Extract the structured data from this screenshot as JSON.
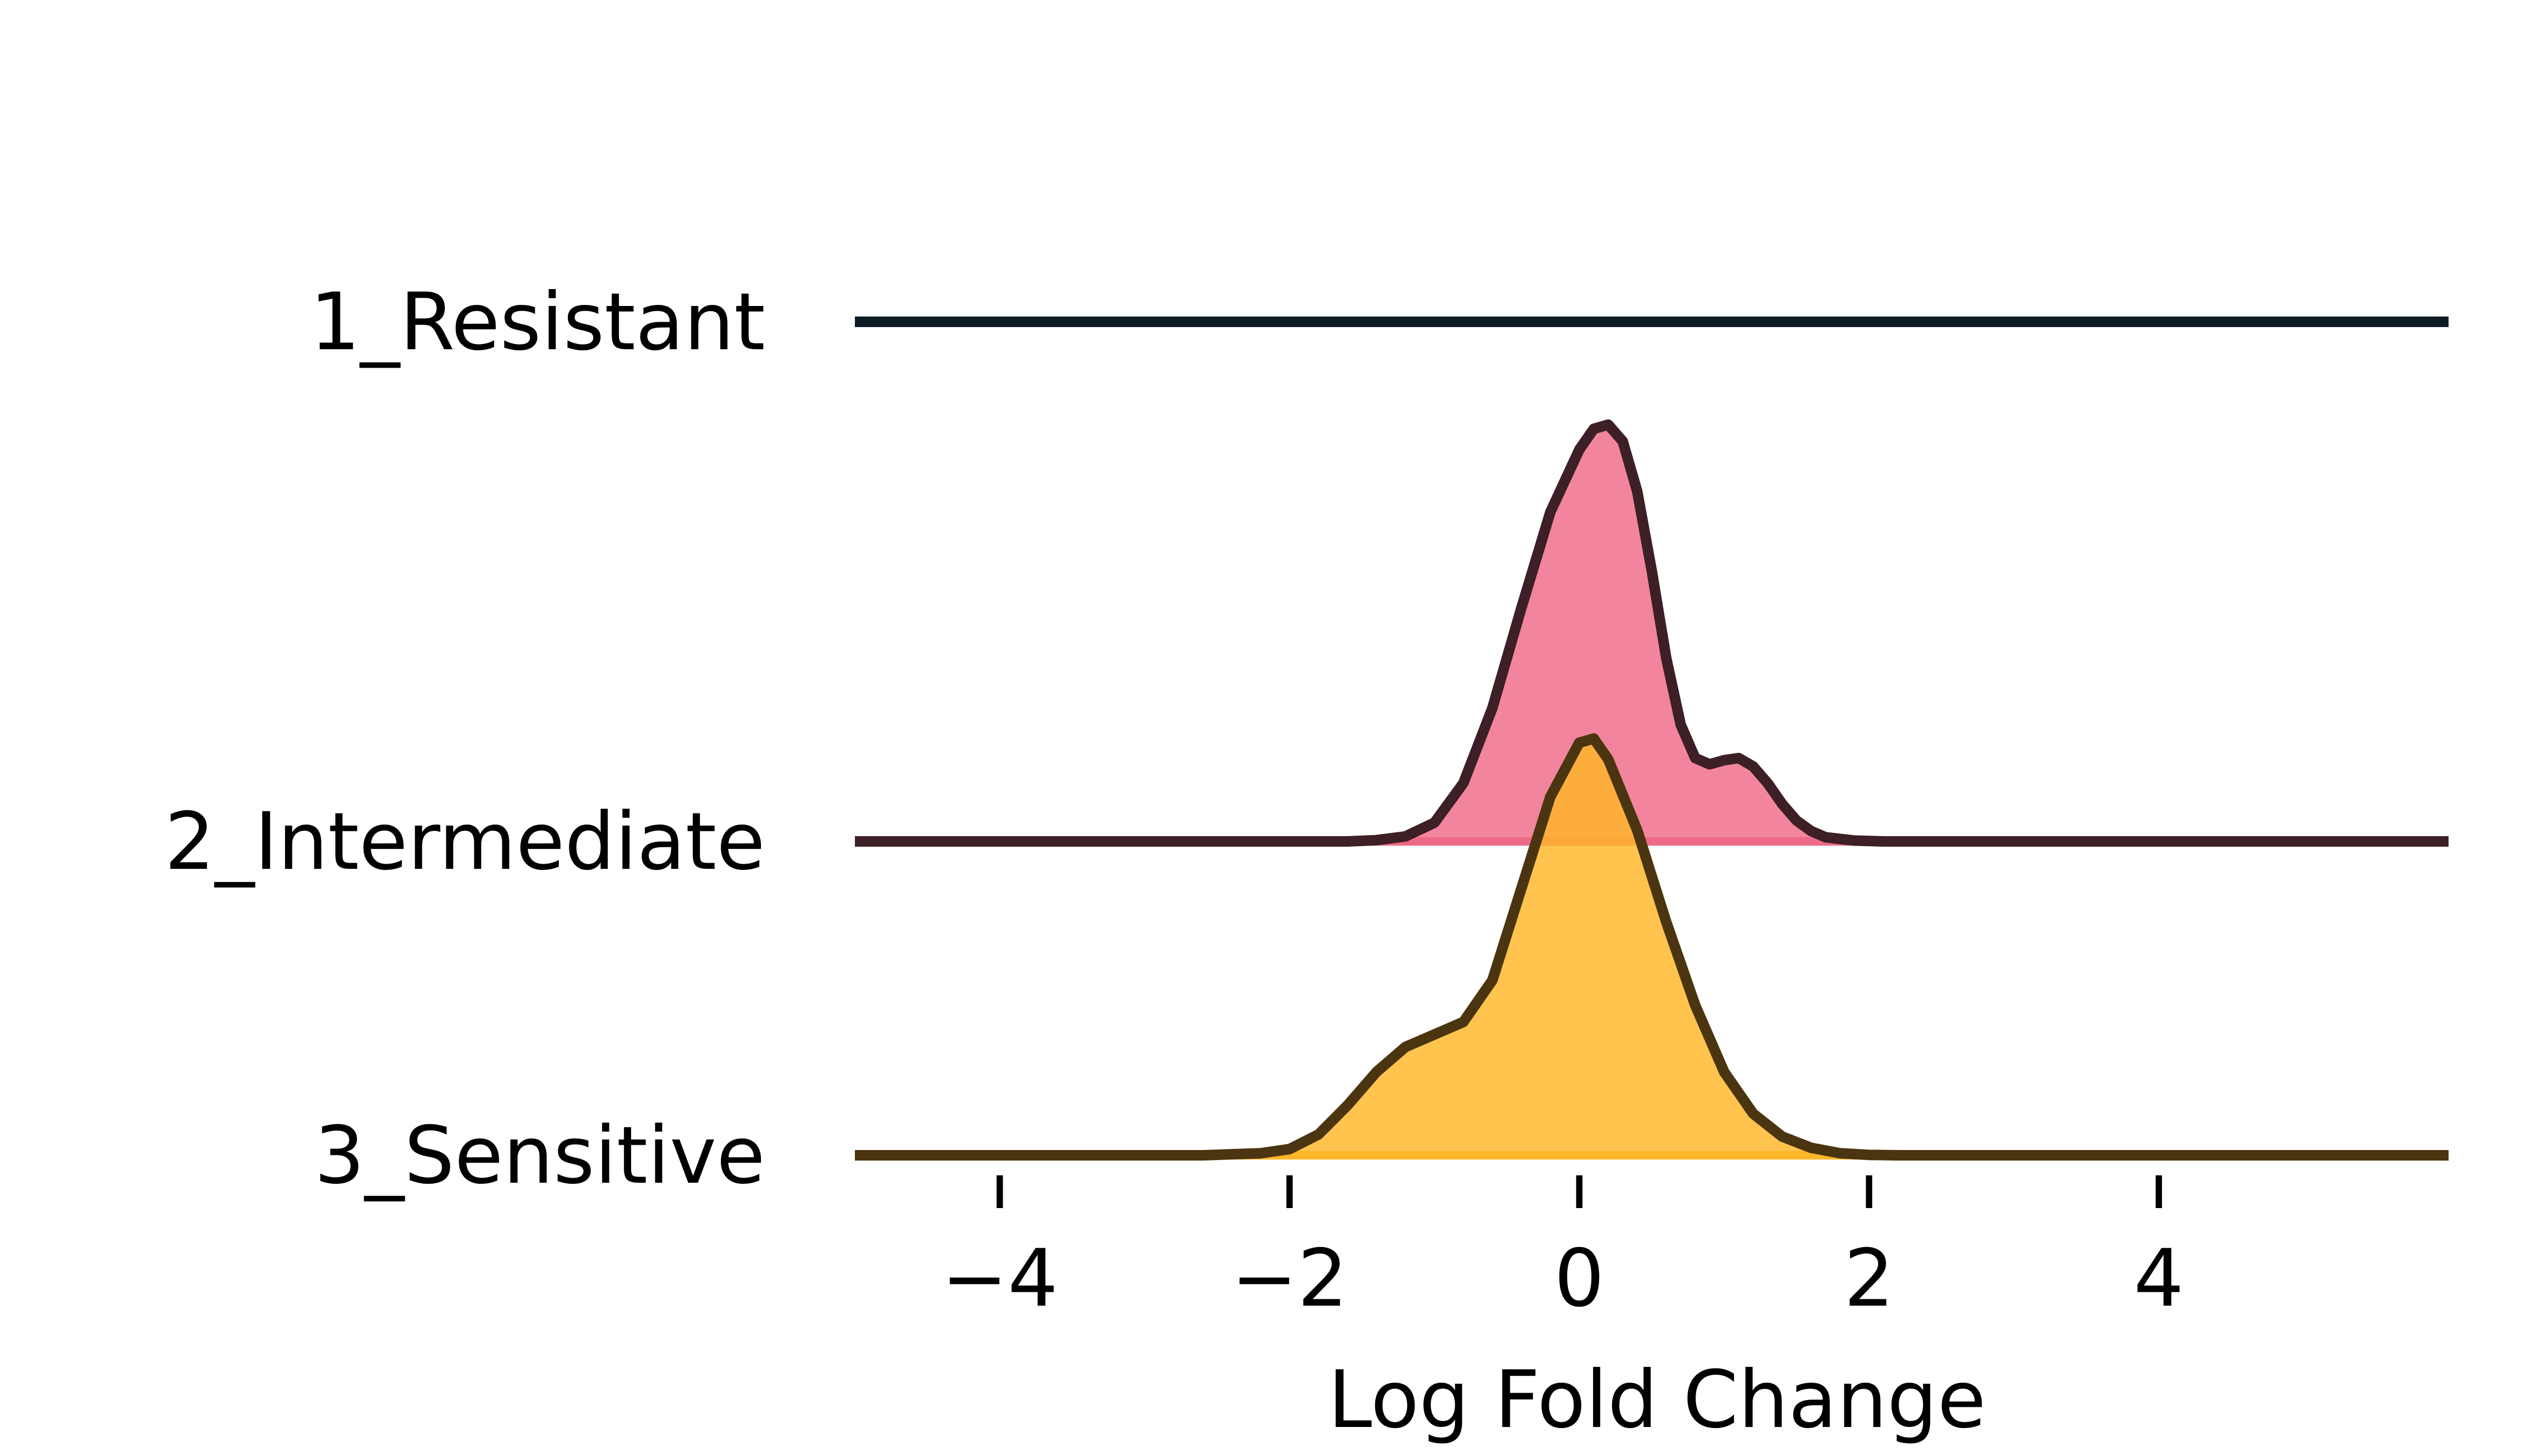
{
  "chart_data": {
    "type": "ridgeline",
    "title": "",
    "xlabel": "Log Fold Change",
    "ylabel": "",
    "xlim": [
      -5.0,
      6.0
    ],
    "xticks": [
      -4,
      -2,
      0,
      2,
      4
    ],
    "xtick_labels": [
      "−4",
      "−2",
      "0",
      "2",
      "4"
    ],
    "grid": false,
    "series": [
      {
        "name": "1_Resistant",
        "fill_color": "#2a9d8f",
        "line_color": "#0d1b24",
        "density": []
      },
      {
        "name": "2_Intermediate",
        "fill_color": "#ef6a88",
        "line_color": "#3d1f26",
        "density": [
          [
            -5.0,
            0
          ],
          [
            -1.6,
            0.0
          ],
          [
            -1.4,
            0.003
          ],
          [
            -1.2,
            0.012
          ],
          [
            -1.0,
            0.045
          ],
          [
            -0.8,
            0.14
          ],
          [
            -0.6,
            0.32
          ],
          [
            -0.4,
            0.56
          ],
          [
            -0.2,
            0.79
          ],
          [
            0.0,
            0.94
          ],
          [
            0.1,
            0.99
          ],
          [
            0.2,
            1.0
          ],
          [
            0.3,
            0.96
          ],
          [
            0.4,
            0.84
          ],
          [
            0.5,
            0.65
          ],
          [
            0.6,
            0.44
          ],
          [
            0.7,
            0.28
          ],
          [
            0.8,
            0.2
          ],
          [
            0.9,
            0.185
          ],
          [
            1.0,
            0.195
          ],
          [
            1.1,
            0.2
          ],
          [
            1.2,
            0.18
          ],
          [
            1.3,
            0.14
          ],
          [
            1.4,
            0.09
          ],
          [
            1.5,
            0.05
          ],
          [
            1.6,
            0.025
          ],
          [
            1.7,
            0.01
          ],
          [
            1.9,
            0.002
          ],
          [
            2.1,
            0.0
          ],
          [
            6.0,
            0
          ]
        ]
      },
      {
        "name": "3_Sensitive",
        "fill_color": "#ffb627",
        "line_color": "#4a3510",
        "density": [
          [
            -5.0,
            0
          ],
          [
            -2.6,
            0.0
          ],
          [
            -2.2,
            0.005
          ],
          [
            -2.0,
            0.015
          ],
          [
            -1.8,
            0.05
          ],
          [
            -1.6,
            0.12
          ],
          [
            -1.4,
            0.2
          ],
          [
            -1.2,
            0.26
          ],
          [
            -1.0,
            0.29
          ],
          [
            -0.8,
            0.32
          ],
          [
            -0.6,
            0.42
          ],
          [
            -0.4,
            0.64
          ],
          [
            -0.2,
            0.86
          ],
          [
            0.0,
            0.99
          ],
          [
            0.1,
            1.0
          ],
          [
            0.2,
            0.95
          ],
          [
            0.4,
            0.78
          ],
          [
            0.6,
            0.56
          ],
          [
            0.8,
            0.36
          ],
          [
            1.0,
            0.2
          ],
          [
            1.2,
            0.1
          ],
          [
            1.4,
            0.045
          ],
          [
            1.6,
            0.018
          ],
          [
            1.8,
            0.005
          ],
          [
            2.0,
            0.001
          ],
          [
            2.2,
            0.0
          ],
          [
            6.0,
            0
          ]
        ]
      }
    ]
  }
}
